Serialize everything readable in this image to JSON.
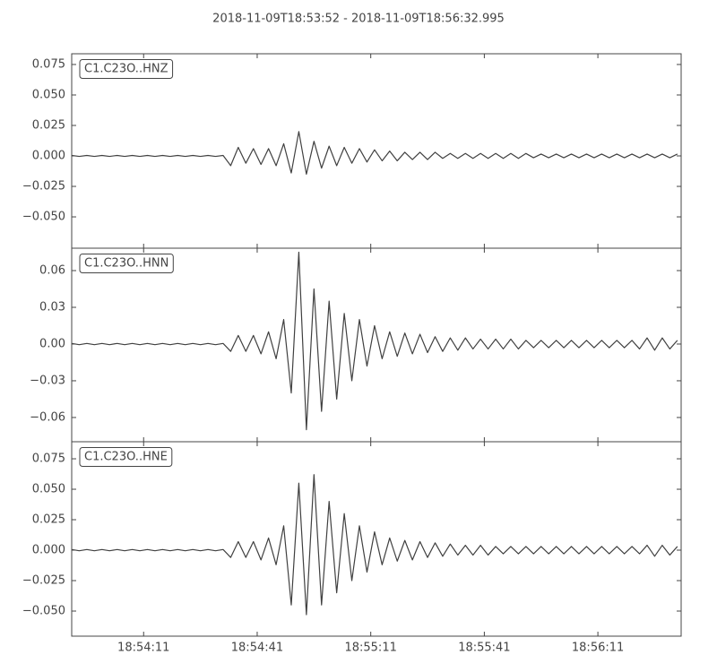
{
  "title": "2018-11-09T18:53:52  -  2018-11-09T18:56:32.995",
  "chart_data": [
    {
      "type": "line",
      "x": [
        0,
        2,
        4,
        6,
        8,
        10,
        12,
        14,
        16,
        18,
        20,
        22,
        24,
        26,
        28,
        30,
        32,
        34,
        36,
        38,
        40,
        42,
        44,
        46,
        48,
        50,
        52,
        54,
        56,
        58,
        60,
        62,
        64,
        66,
        68,
        70,
        72,
        74,
        76,
        78,
        80,
        82,
        84,
        86,
        88,
        90,
        92,
        94,
        96,
        98,
        100,
        102,
        104,
        106,
        108,
        110,
        112,
        114,
        116,
        118,
        120,
        122,
        124,
        126,
        128,
        130,
        132,
        134,
        136,
        138,
        140,
        142,
        144,
        146,
        148,
        150,
        152,
        154,
        156,
        158,
        160
      ],
      "xlim": [
        0,
        160.995
      ],
      "ylim": [
        -0.0757,
        0.0838
      ],
      "yticks": [
        {
          "value": -0.05,
          "label": "−0.050"
        },
        {
          "value": -0.025,
          "label": "−0.025"
        },
        {
          "value": 0,
          "label": "0.000"
        },
        {
          "value": 0.025,
          "label": "0.025"
        },
        {
          "value": 0.05,
          "label": "0.050"
        },
        {
          "value": 0.075,
          "label": "0.075"
        }
      ],
      "series": [
        {
          "name": "C1.C23O..HNZ",
          "color": "#404040",
          "values": [
            0.0004,
            -0.0004,
            0.0004,
            -0.0004,
            0.0004,
            -0.0004,
            0.0004,
            -0.0004,
            0.0004,
            -0.0004,
            0.0004,
            -0.0004,
            0.0004,
            -0.0004,
            0.0004,
            -0.0004,
            0.0004,
            -0.0004,
            0.0004,
            -0.0004,
            0.0004,
            -0.008,
            0.007,
            -0.006,
            0.006,
            -0.007,
            0.006,
            -0.008,
            0.01,
            -0.014,
            0.02,
            -0.015,
            0.012,
            -0.01,
            0.008,
            -0.008,
            0.007,
            -0.006,
            0.006,
            -0.005,
            0.005,
            -0.004,
            0.004,
            -0.004,
            0.003,
            -0.003,
            0.003,
            -0.003,
            0.003,
            -0.002,
            0.002,
            -0.002,
            0.002,
            -0.002,
            0.002,
            -0.002,
            0.002,
            -0.002,
            0.002,
            -0.002,
            0.002,
            -0.0015,
            0.0015,
            -0.0015,
            0.0015,
            -0.0015,
            0.0015,
            -0.0015,
            0.0015,
            -0.0015,
            0.0015,
            -0.0015,
            0.0015,
            -0.0015,
            0.0015,
            -0.0015,
            0.0015,
            -0.0015,
            0.0015,
            -0.0015,
            0.0015
          ]
        }
      ]
    },
    {
      "type": "line",
      "x": [
        0,
        2,
        4,
        6,
        8,
        10,
        12,
        14,
        16,
        18,
        20,
        22,
        24,
        26,
        28,
        30,
        32,
        34,
        36,
        38,
        40,
        42,
        44,
        46,
        48,
        50,
        52,
        54,
        56,
        58,
        60,
        62,
        64,
        66,
        68,
        70,
        72,
        74,
        76,
        78,
        80,
        82,
        84,
        86,
        88,
        90,
        92,
        94,
        96,
        98,
        100,
        102,
        104,
        106,
        108,
        110,
        112,
        114,
        116,
        118,
        120,
        122,
        124,
        126,
        128,
        130,
        132,
        134,
        136,
        138,
        140,
        142,
        144,
        146,
        148,
        150,
        152,
        154,
        156,
        158,
        160
      ],
      "xlim": [
        0,
        160.995
      ],
      "ylim": [
        -0.0798,
        0.0783
      ],
      "yticks": [
        {
          "value": -0.06,
          "label": "−0.06"
        },
        {
          "value": -0.03,
          "label": "−0.03"
        },
        {
          "value": 0,
          "label": "0.00"
        },
        {
          "value": 0.03,
          "label": "0.03"
        },
        {
          "value": 0.06,
          "label": "0.06"
        }
      ],
      "series": [
        {
          "name": "C1.C23O..HNN",
          "color": "#404040",
          "values": [
            0.0005,
            -0.0005,
            0.0005,
            -0.0005,
            0.0005,
            -0.0005,
            0.0005,
            -0.0005,
            0.0005,
            -0.0005,
            0.0005,
            -0.0005,
            0.0005,
            -0.0005,
            0.0005,
            -0.0005,
            0.0005,
            -0.0005,
            0.0005,
            -0.0005,
            0.0005,
            -0.006,
            0.007,
            -0.006,
            0.007,
            -0.008,
            0.01,
            -0.012,
            0.02,
            -0.04,
            0.075,
            -0.07,
            0.045,
            -0.055,
            0.035,
            -0.045,
            0.025,
            -0.03,
            0.02,
            -0.018,
            0.015,
            -0.012,
            0.01,
            -0.01,
            0.009,
            -0.008,
            0.008,
            -0.007,
            0.006,
            -0.006,
            0.005,
            -0.005,
            0.005,
            -0.004,
            0.004,
            -0.004,
            0.004,
            -0.004,
            0.004,
            -0.004,
            0.003,
            -0.003,
            0.003,
            -0.003,
            0.003,
            -0.003,
            0.003,
            -0.003,
            0.003,
            -0.003,
            0.003,
            -0.003,
            0.003,
            -0.003,
            0.003,
            -0.004,
            0.005,
            -0.005,
            0.005,
            -0.004,
            0.003
          ]
        }
      ]
    },
    {
      "type": "line",
      "x": [
        0,
        2,
        4,
        6,
        8,
        10,
        12,
        14,
        16,
        18,
        20,
        22,
        24,
        26,
        28,
        30,
        32,
        34,
        36,
        38,
        40,
        42,
        44,
        46,
        48,
        50,
        52,
        54,
        56,
        58,
        60,
        62,
        64,
        66,
        68,
        70,
        72,
        74,
        76,
        78,
        80,
        82,
        84,
        86,
        88,
        90,
        92,
        94,
        96,
        98,
        100,
        102,
        104,
        106,
        108,
        110,
        112,
        114,
        116,
        118,
        120,
        122,
        124,
        126,
        128,
        130,
        132,
        134,
        136,
        138,
        140,
        142,
        144,
        146,
        148,
        150,
        152,
        154,
        156,
        158,
        160
      ],
      "xlim": [
        0,
        160.995
      ],
      "xticks": [
        {
          "value": 19,
          "label": "18:54:11"
        },
        {
          "value": 49,
          "label": "18:54:41"
        },
        {
          "value": 79,
          "label": "18:55:11"
        },
        {
          "value": 109,
          "label": "18:55:41"
        },
        {
          "value": 139,
          "label": "18:56:11"
        }
      ],
      "ylim": [
        -0.0706,
        0.089
      ],
      "yticks": [
        {
          "value": -0.05,
          "label": "−0.050"
        },
        {
          "value": -0.025,
          "label": "−0.025"
        },
        {
          "value": 0,
          "label": "0.000"
        },
        {
          "value": 0.025,
          "label": "0.025"
        },
        {
          "value": 0.05,
          "label": "0.050"
        },
        {
          "value": 0.075,
          "label": "0.075"
        }
      ],
      "series": [
        {
          "name": "C1.C23O..HNE",
          "color": "#404040",
          "values": [
            0.0005,
            -0.0005,
            0.0005,
            -0.0005,
            0.0005,
            -0.0005,
            0.0005,
            -0.0005,
            0.0005,
            -0.0005,
            0.0005,
            -0.0005,
            0.0005,
            -0.0005,
            0.0005,
            -0.0005,
            0.0005,
            -0.0005,
            0.0005,
            -0.0005,
            0.0005,
            -0.006,
            0.007,
            -0.006,
            0.007,
            -0.008,
            0.01,
            -0.012,
            0.02,
            -0.045,
            0.055,
            -0.053,
            0.062,
            -0.045,
            0.04,
            -0.035,
            0.03,
            -0.025,
            0.02,
            -0.018,
            0.015,
            -0.012,
            0.01,
            -0.009,
            0.008,
            -0.008,
            0.007,
            -0.006,
            0.006,
            -0.005,
            0.005,
            -0.004,
            0.004,
            -0.004,
            0.004,
            -0.004,
            0.003,
            -0.003,
            0.003,
            -0.003,
            0.003,
            -0.003,
            0.003,
            -0.003,
            0.003,
            -0.003,
            0.003,
            -0.003,
            0.003,
            -0.003,
            0.003,
            -0.003,
            0.003,
            -0.003,
            0.003,
            -0.003,
            0.004,
            -0.005,
            0.004,
            -0.004,
            0.003
          ]
        }
      ]
    }
  ]
}
